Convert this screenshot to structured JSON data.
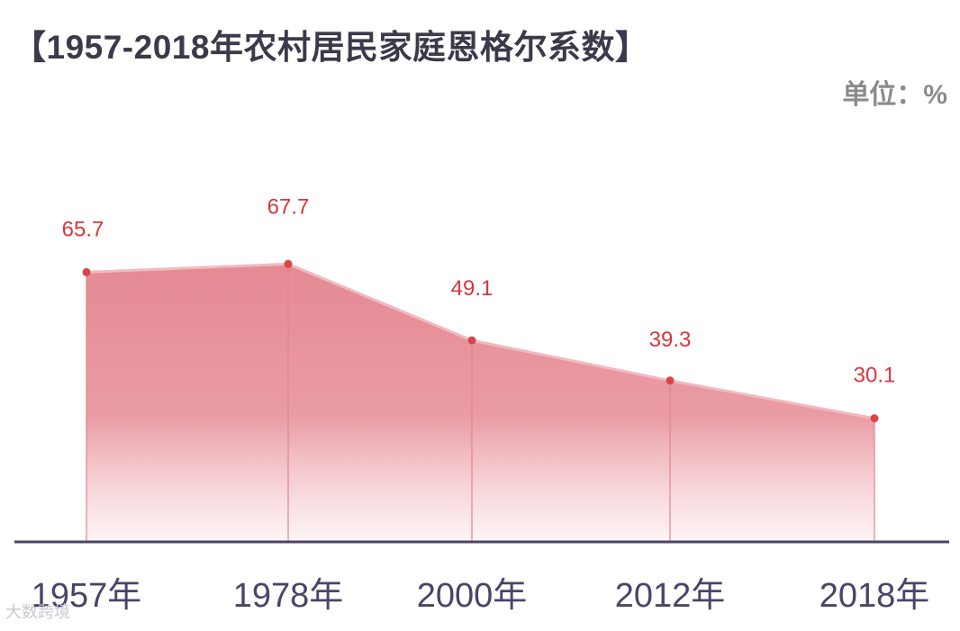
{
  "title": "【1957-2018年农村居民家庭恩格尔系数】",
  "unit_label": "单位：%",
  "watermark": "大数跨境",
  "colors": {
    "line": "#d9444a",
    "fill_top": "#e3848e",
    "fill_bottom": "#fdeef0",
    "axis": "#4b4468",
    "value_label": "#d9363e",
    "tick_label": "#4b4468"
  },
  "chart_data": {
    "type": "area",
    "title": "1957-2018年农村居民家庭恩格尔系数",
    "ylabel": "单位：%",
    "categories": [
      "1957年",
      "1978年",
      "2000年",
      "2012年",
      "2018年"
    ],
    "values": [
      65.7,
      67.7,
      49.1,
      39.3,
      30.1
    ],
    "value_labels": [
      "65.7",
      "67.7",
      "49.1",
      "39.3",
      "30.1"
    ],
    "ylim": [
      0,
      100
    ],
    "grid": false,
    "legend": "none"
  }
}
